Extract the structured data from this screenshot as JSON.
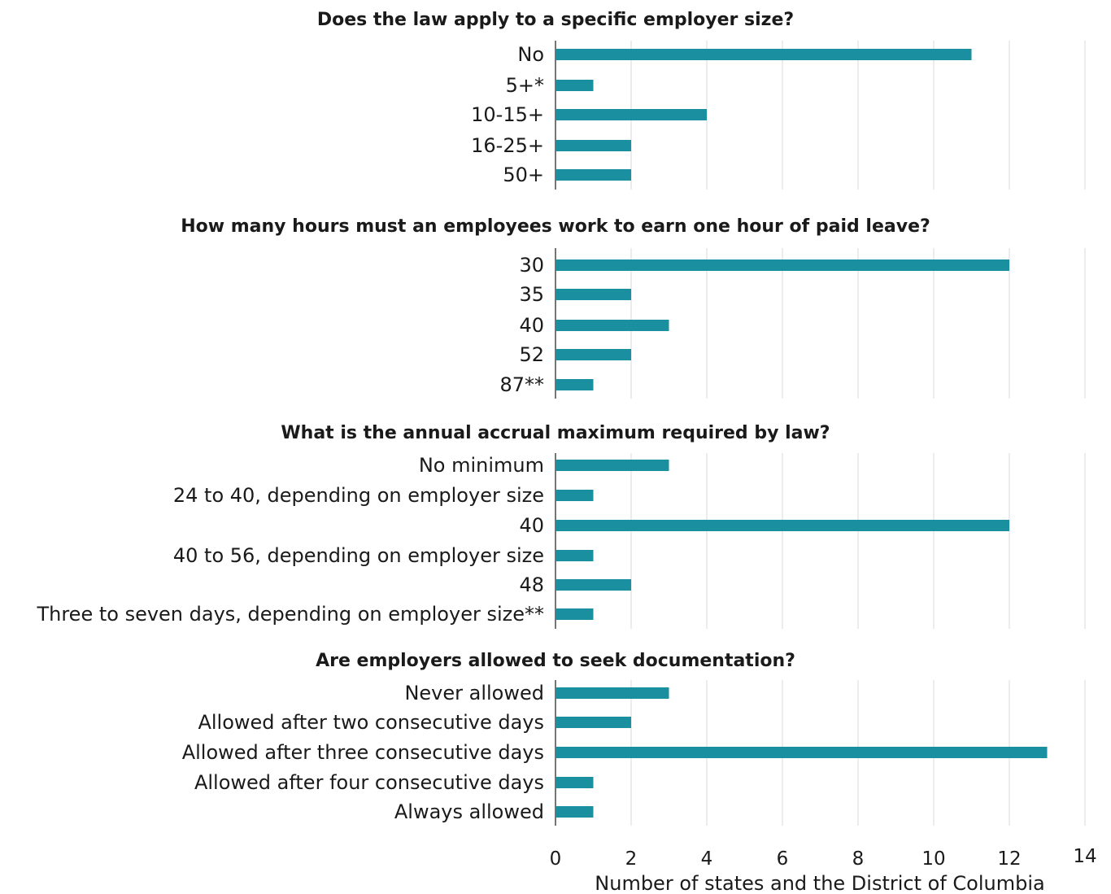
{
  "chart_data": {
    "type": "bar",
    "orientation": "horizontal",
    "bar_color": "#1a8fa0",
    "xlim": [
      0,
      14
    ],
    "xticks": [
      0,
      2,
      4,
      6,
      8,
      10,
      12,
      14
    ],
    "xlabel": "Number of states and the District of Columbia",
    "grid": true,
    "panels": [
      {
        "title": "Does the law apply to a specific employer size?",
        "categories": [
          "No",
          "5+*",
          "10-15+",
          "16-25+",
          "50+"
        ],
        "values": [
          11,
          1,
          4,
          2,
          2
        ]
      },
      {
        "title": "How many hours must an employees work to earn one hour of paid leave?",
        "categories": [
          "30",
          "35",
          "40",
          "52",
          "87**"
        ],
        "values": [
          12,
          2,
          3,
          2,
          1
        ]
      },
      {
        "title": "What is the annual accrual maximum required by law?",
        "categories": [
          "No minimum",
          "24 to 40, depending on employer size",
          "40",
          "40 to 56, depending on employer size",
          "48",
          "Three to seven days, depending on employer size**"
        ],
        "values": [
          3,
          1,
          12,
          1,
          2,
          1
        ]
      },
      {
        "title": "Are employers allowed to seek documentation?",
        "categories": [
          "Never allowed",
          "Allowed after two consecutive days",
          "Allowed after three consecutive days",
          "Allowed after four consecutive days",
          "Always allowed"
        ],
        "values": [
          3,
          2,
          13,
          1,
          1
        ]
      }
    ]
  }
}
